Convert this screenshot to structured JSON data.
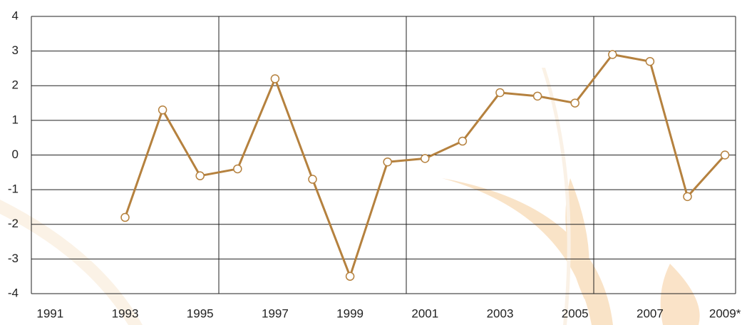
{
  "chart_data": {
    "type": "line",
    "categories": [
      "1991",
      null,
      "1993",
      null,
      "1995",
      null,
      "1997",
      null,
      "1999",
      null,
      "2001",
      null,
      "2003",
      null,
      "2005",
      null,
      "2007",
      null,
      "2009*"
    ],
    "series": [
      {
        "color": "#b5813e",
        "values": [
          null,
          null,
          -1.8,
          1.3,
          -0.6,
          -0.4,
          2.2,
          -0.7,
          -3.5,
          -0.2,
          -0.1,
          0.4,
          1.8,
          1.7,
          1.5,
          2.9,
          2.7,
          -1.2,
          0.0
        ]
      }
    ],
    "ylim": [
      -4,
      4
    ],
    "yticks": [
      -4,
      -3,
      -2,
      -1,
      0,
      1,
      2,
      3,
      4
    ],
    "grid": true
  }
}
